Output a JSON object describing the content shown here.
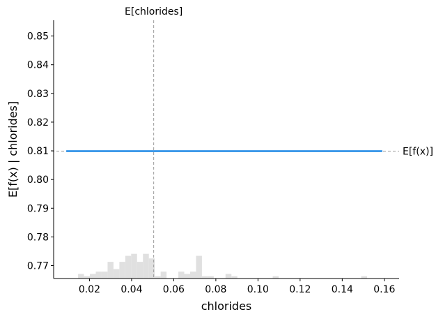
{
  "chart_data": {
    "type": "line",
    "xlabel": "chlorides",
    "ylabel": "E[f(x) | chlorides]",
    "xlim": [
      0.003,
      0.167
    ],
    "ylim": [
      0.7655,
      0.8555
    ],
    "x_ticks": [
      0.02,
      0.04,
      0.06,
      0.08,
      0.1,
      0.12,
      0.14,
      0.16
    ],
    "x_tick_labels": [
      "0.02",
      "0.04",
      "0.06",
      "0.08",
      "0.10",
      "0.12",
      "0.14",
      "0.16"
    ],
    "y_ticks": [
      0.77,
      0.78,
      0.79,
      0.8,
      0.81,
      0.82,
      0.83,
      0.84,
      0.85
    ],
    "y_tick_labels": [
      "0.77",
      "0.78",
      "0.79",
      "0.80",
      "0.81",
      "0.82",
      "0.83",
      "0.84",
      "0.85"
    ],
    "grid": false,
    "line": {
      "x": [
        0.009,
        0.159
      ],
      "y": [
        0.8099,
        0.8099
      ],
      "color": "#1e88e5"
    },
    "expected_value_line": {
      "label": "E[f(x)]",
      "y": 0.8099,
      "color": "#999999"
    },
    "expected_feature_line": {
      "label": "E[chlorides]",
      "x": 0.0505,
      "color": "#999999"
    },
    "histogram": {
      "color": "#e0e0e0",
      "bins": [
        {
          "x0": 0.0146,
          "x1": 0.0174,
          "height": 0.0016
        },
        {
          "x0": 0.0174,
          "x1": 0.0202,
          "height": 0.0008
        },
        {
          "x0": 0.0202,
          "x1": 0.023,
          "height": 0.0016
        },
        {
          "x0": 0.023,
          "x1": 0.0258,
          "height": 0.0024
        },
        {
          "x0": 0.0258,
          "x1": 0.0286,
          "height": 0.0024
        },
        {
          "x0": 0.0286,
          "x1": 0.0314,
          "height": 0.0058
        },
        {
          "x0": 0.0314,
          "x1": 0.0342,
          "height": 0.0033
        },
        {
          "x0": 0.0342,
          "x1": 0.037,
          "height": 0.0058
        },
        {
          "x0": 0.037,
          "x1": 0.0398,
          "height": 0.0079
        },
        {
          "x0": 0.0398,
          "x1": 0.0426,
          "height": 0.0086
        },
        {
          "x0": 0.0426,
          "x1": 0.0454,
          "height": 0.0058
        },
        {
          "x0": 0.0454,
          "x1": 0.0482,
          "height": 0.0086
        },
        {
          "x0": 0.0482,
          "x1": 0.051,
          "height": 0.007
        },
        {
          "x0": 0.051,
          "x1": 0.0538,
          "height": 0.0008
        },
        {
          "x0": 0.0538,
          "x1": 0.0566,
          "height": 0.0024
        },
        {
          "x0": 0.0622,
          "x1": 0.065,
          "height": 0.0024
        },
        {
          "x0": 0.065,
          "x1": 0.0678,
          "height": 0.0016
        },
        {
          "x0": 0.0678,
          "x1": 0.0706,
          "height": 0.0024
        },
        {
          "x0": 0.0706,
          "x1": 0.0734,
          "height": 0.0079
        },
        {
          "x0": 0.0734,
          "x1": 0.0762,
          "height": 0.0008
        },
        {
          "x0": 0.0762,
          "x1": 0.079,
          "height": 0.0008
        },
        {
          "x0": 0.0846,
          "x1": 0.0874,
          "height": 0.0016
        },
        {
          "x0": 0.0874,
          "x1": 0.0902,
          "height": 0.0008
        },
        {
          "x0": 0.107,
          "x1": 0.1098,
          "height": 0.0008
        },
        {
          "x0": 0.149,
          "x1": 0.1518,
          "height": 0.0008
        }
      ]
    }
  }
}
